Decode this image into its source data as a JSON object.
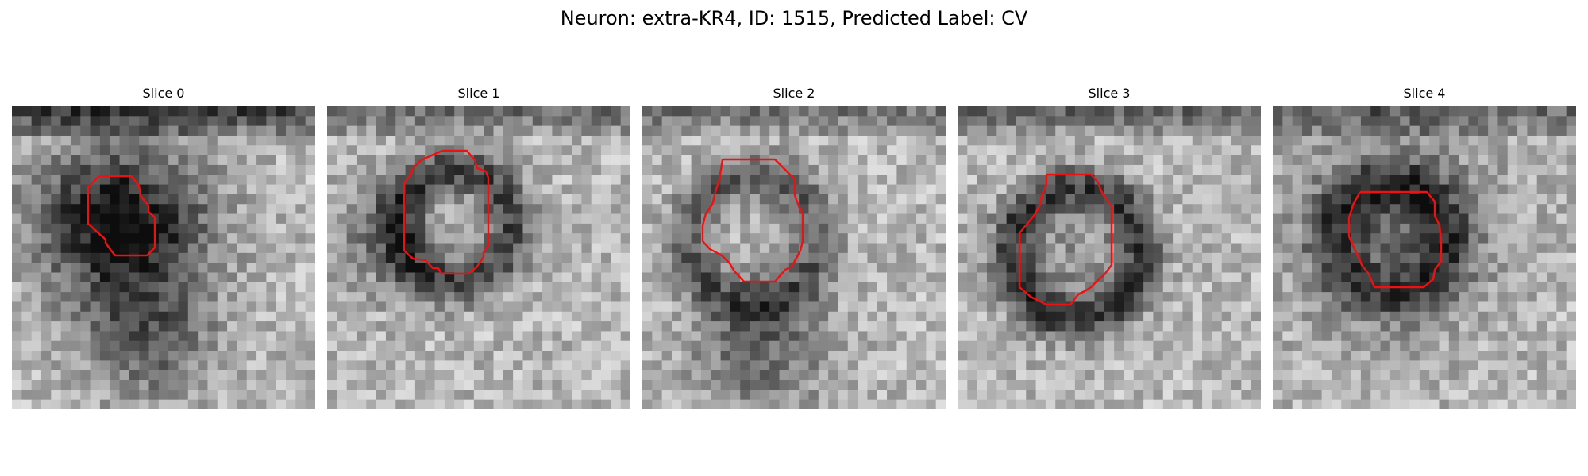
{
  "figure": {
    "title": "Neuron: extra-KR4, ID: 1515, Predicted Label: CV"
  },
  "outline_color": "#ee1111",
  "panels": [
    {
      "title": "Slice 0"
    },
    {
      "title": "Slice 1"
    },
    {
      "title": "Slice 2"
    },
    {
      "title": "Slice 3"
    },
    {
      "title": "Slice 4"
    }
  ]
}
